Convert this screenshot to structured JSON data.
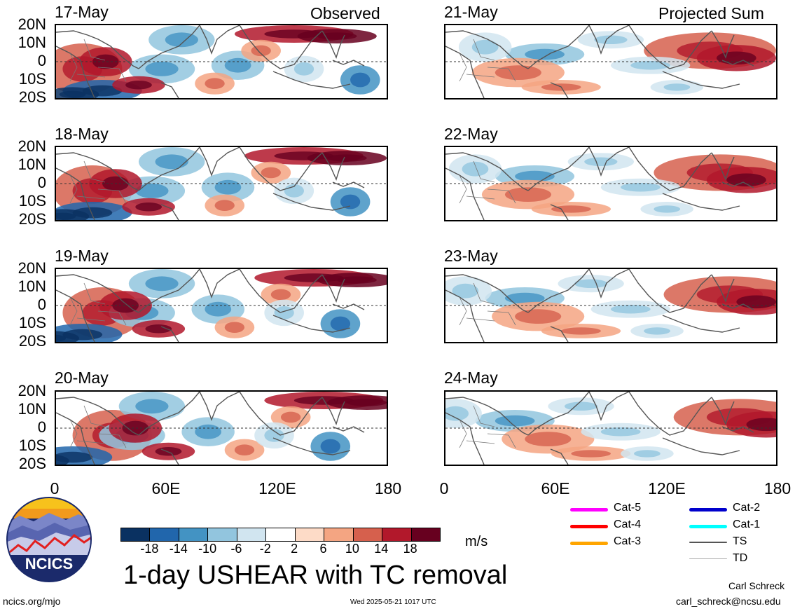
{
  "panels": [
    {
      "date": "17-May",
      "tag": "Observed",
      "type": "obs"
    },
    {
      "date": "18-May",
      "tag": "",
      "type": "obs"
    },
    {
      "date": "19-May",
      "tag": "",
      "type": "obs"
    },
    {
      "date": "20-May",
      "tag": "",
      "type": "obs"
    },
    {
      "date": "21-May",
      "tag": "Projected Sum",
      "type": "proj"
    },
    {
      "date": "22-May",
      "tag": "",
      "type": "proj"
    },
    {
      "date": "23-May",
      "tag": "",
      "type": "proj"
    },
    {
      "date": "24-May",
      "tag": "",
      "type": "proj"
    }
  ],
  "lat_labels": [
    "20N",
    "10N",
    "0",
    "10S",
    "20S"
  ],
  "lon_labels": [
    "0",
    "60E",
    "120E",
    "180"
  ],
  "colorbar": {
    "ticks": [
      "-18",
      "-14",
      "-10",
      "-6",
      "-2",
      "2",
      "6",
      "10",
      "14",
      "18"
    ],
    "colors": [
      "#0a3161",
      "#2166ac",
      "#4393c3",
      "#92c5de",
      "#d1e5f0",
      "#ffffff",
      "#fddbc7",
      "#f4a582",
      "#d6604d",
      "#b2182b",
      "#67001f"
    ],
    "units": "m/s"
  },
  "legend": [
    {
      "label": "Cat-5",
      "color": "#ff00ff"
    },
    {
      "label": "Cat-4",
      "color": "#ff0000"
    },
    {
      "label": "Cat-3",
      "color": "#ffa500"
    },
    {
      "label": "Cat-2",
      "color": "#0000cc"
    },
    {
      "label": "Cat-1",
      "color": "#00ffff"
    },
    {
      "label": "TS",
      "color": "#555555"
    },
    {
      "label": "TD",
      "color": "#aaaaaa"
    }
  ],
  "title": "1-day USHEAR with TC removal",
  "logo_text": "NCICS",
  "url": "ncics.org/mjo",
  "timestamp": "Wed 2025-05-21 1017 UTC",
  "author": "Carl Schreck",
  "email": "carl_schreck@ncsu.edu"
}
